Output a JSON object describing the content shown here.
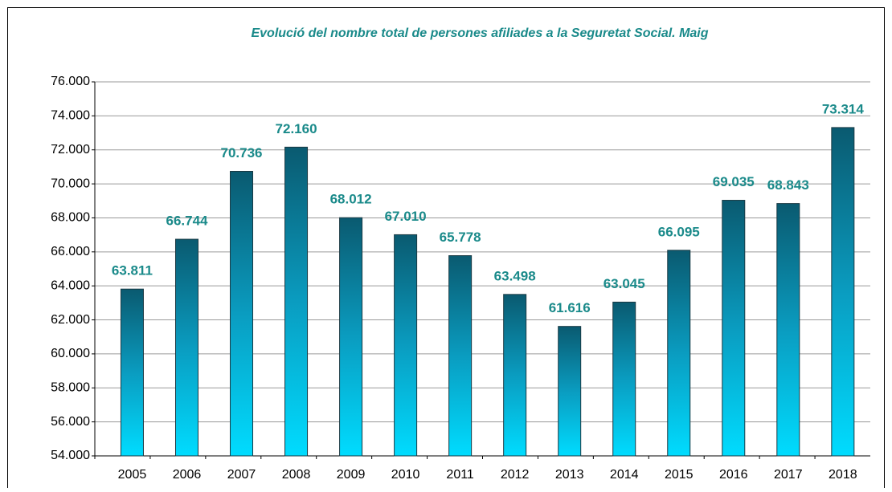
{
  "chart_data": {
    "type": "bar",
    "title": "Evolució del nombre total de persones afiliades a la Seguretat Social. Maig",
    "categories": [
      "2005",
      "2006",
      "2007",
      "2008",
      "2009",
      "2010",
      "2011",
      "2012",
      "2013",
      "2014",
      "2015",
      "2016",
      "2017",
      "2018"
    ],
    "values": [
      63811,
      66744,
      70736,
      72160,
      68012,
      67010,
      65778,
      63498,
      61616,
      63045,
      66095,
      69035,
      68843,
      73314
    ],
    "value_labels": [
      "63.811",
      "66.744",
      "70.736",
      "72.160",
      "68.012",
      "67.010",
      "65.778",
      "63.498",
      "61.616",
      "63.045",
      "66.095",
      "69.035",
      "68.843",
      "73.314"
    ],
    "color": "#0a5a70",
    "ylim": [
      54000,
      76000
    ],
    "yticks": [
      {
        "value": 54000,
        "label": "54.000"
      },
      {
        "value": 56000,
        "label": "56.000"
      },
      {
        "value": 58000,
        "label": "58.000"
      },
      {
        "value": 60000,
        "label": "60.000"
      },
      {
        "value": 62000,
        "label": "62.000"
      },
      {
        "value": 64000,
        "label": "64.000"
      },
      {
        "value": 66000,
        "label": "66.000"
      },
      {
        "value": 68000,
        "label": "68.000"
      },
      {
        "value": 70000,
        "label": "70.000"
      },
      {
        "value": 72000,
        "label": "72.000"
      },
      {
        "value": 74000,
        "label": "74.000"
      },
      {
        "value": 76000,
        "label": "76.000"
      }
    ],
    "grid": true
  }
}
